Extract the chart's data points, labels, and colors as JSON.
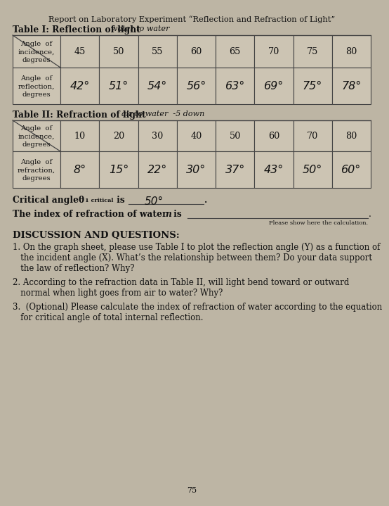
{
  "title_line1": "Report on Laboratory Experiment “Reflection and Refraction of Light”",
  "table1_title": "Table I: Reflection of light",
  "table1_subtitle": "water to water",
  "table1_row1_label": "Angle  of\nincidence,\ndegrees",
  "table1_row1_values": [
    "45",
    "50",
    "55",
    "60",
    "65",
    "70",
    "75",
    "80"
  ],
  "table1_row2_label": "Angle  of\nreflection,\ndegrees",
  "table1_row2_values": [
    "42°",
    "51°",
    "54°",
    "56°",
    "63°",
    "69°",
    "75°",
    "78°"
  ],
  "table2_title": "Table II: Refraction of light",
  "table2_subtitle": "air to water  -5 down",
  "table2_row1_label": "Angle  of\nincidence,\ndegrees",
  "table2_row1_values": [
    "10",
    "20",
    "30",
    "40",
    "50",
    "60",
    "70",
    "80"
  ],
  "table2_row2_label": "Angle  of\nrefraction,\ndegrees",
  "table2_row2_values": [
    "8°",
    "15°",
    "22°",
    "30°",
    "37°",
    "43°",
    "50°",
    "60°"
  ],
  "please_show": "Please show here the calculation.",
  "discussion_title": "DISCUSSION AND QUESTIONS:",
  "q1_lines": [
    "1. On the graph sheet, please use Table I to plot the reflection angle (Y) as a function of",
    "   the incident angle (X). What’s the relationship between them? Do your data support",
    "   the law of reflection? Why?"
  ],
  "q2_lines": [
    "2. According to the refraction data in Table II, will light bend toward or outward",
    "   normal when light goes from air to water? Why?"
  ],
  "q3_lines": [
    "3.  (Optional) Please calculate the index of refraction of water according to the equation",
    "   for critical angle of total internal reflection."
  ],
  "page_number": "75",
  "bg_color": "#bdb5a4",
  "text_color": "#111111",
  "table_cell_color": "#ccc4b3",
  "border_color": "#444444"
}
